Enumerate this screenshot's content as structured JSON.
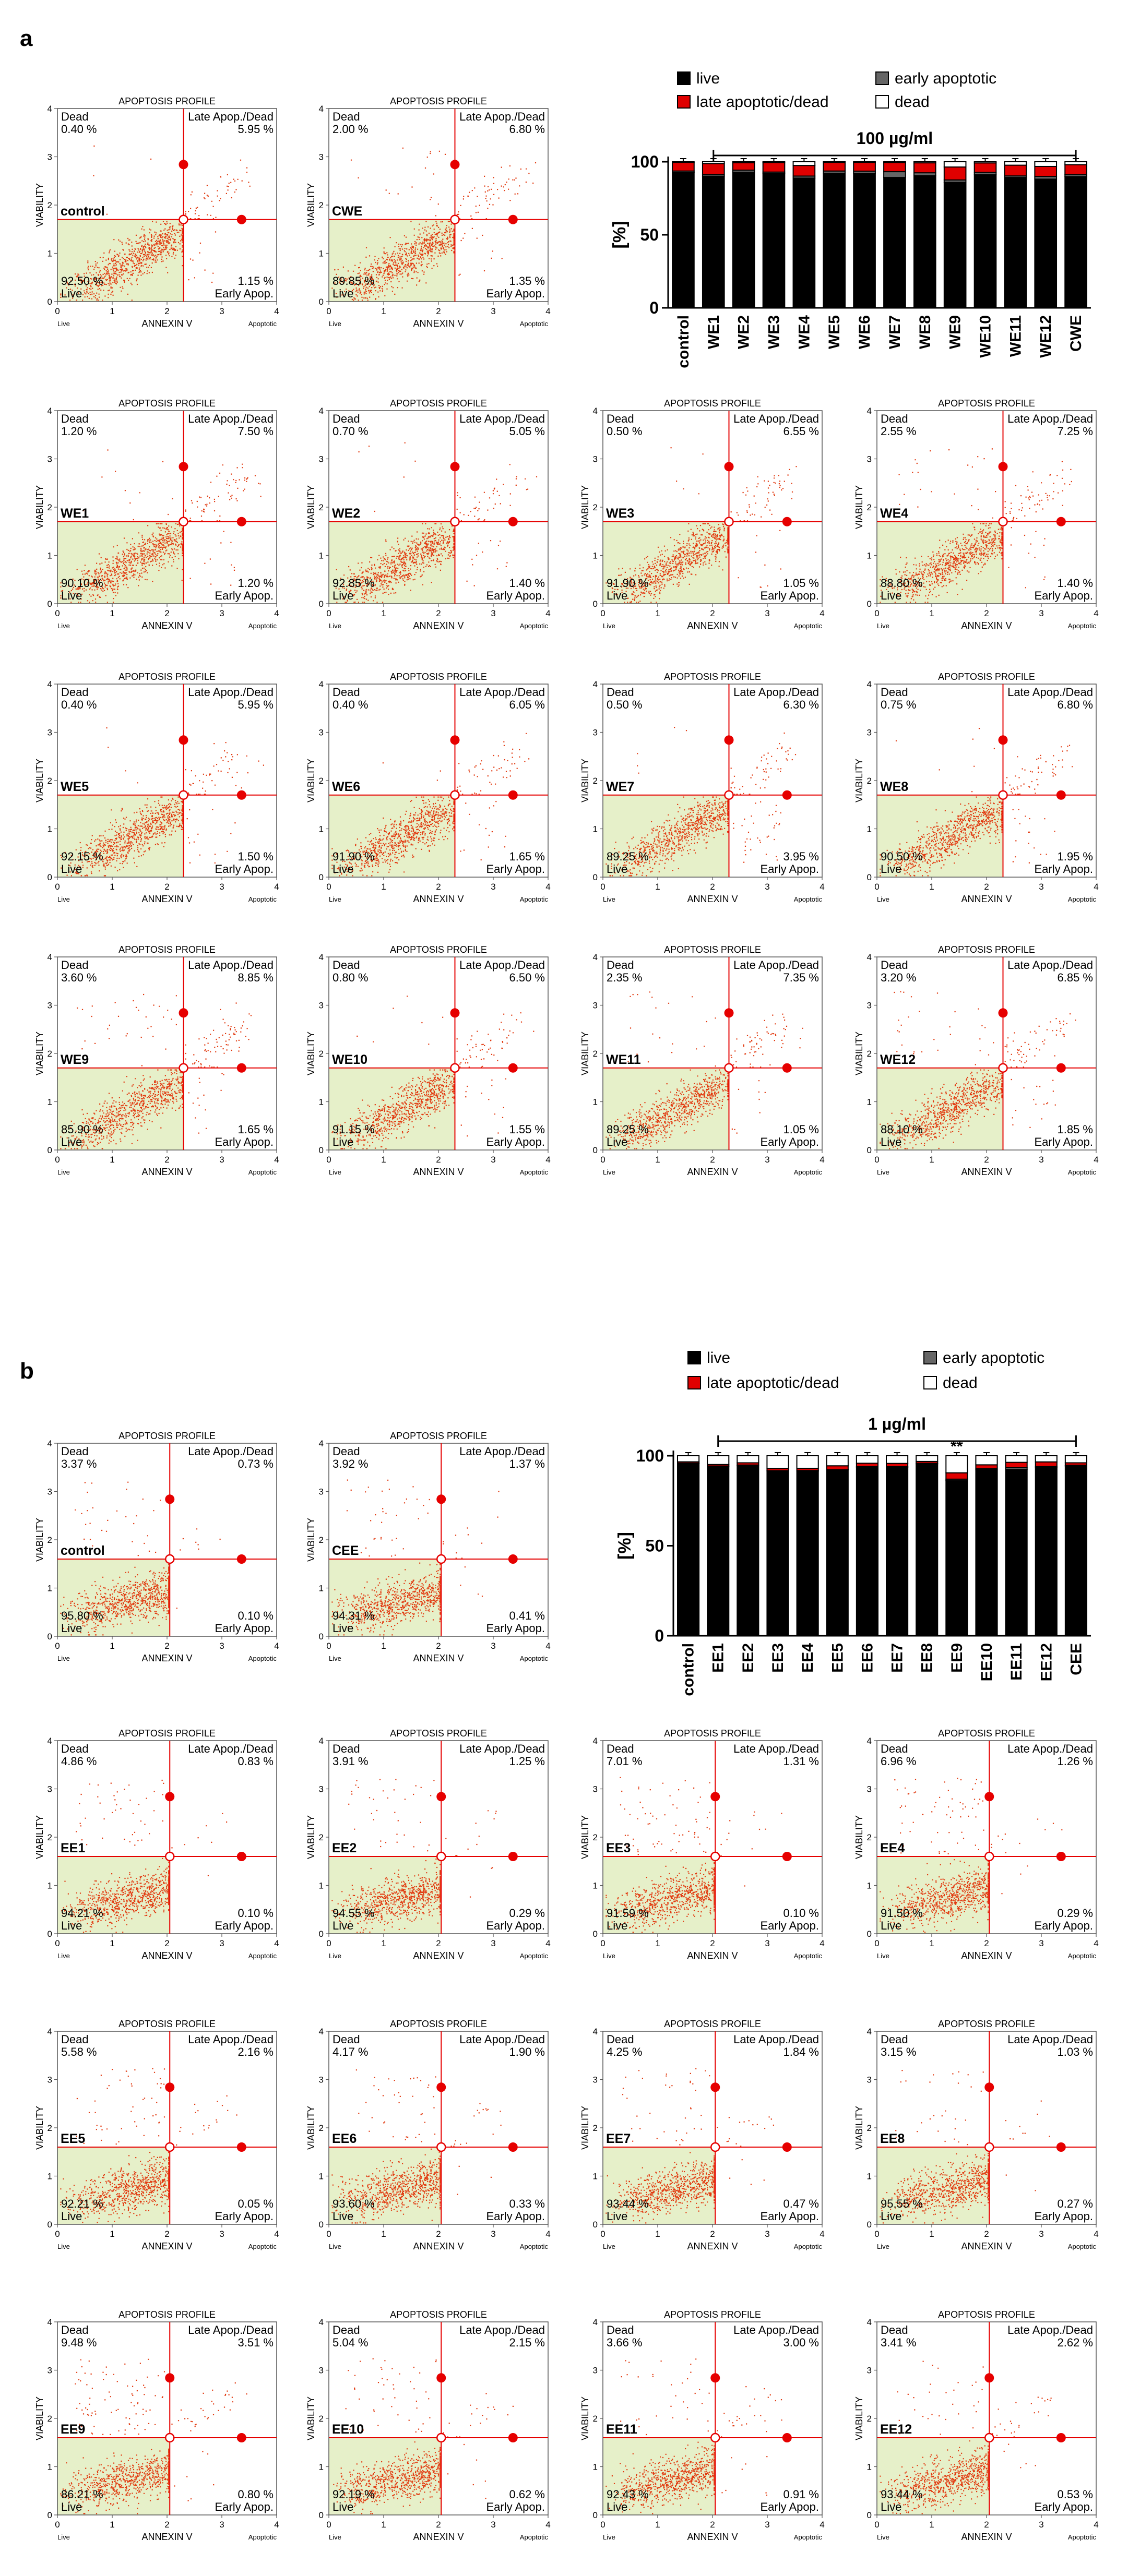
{
  "panels": [
    {
      "letter": "a",
      "flow": {
        "title": "APOPTOSIS PROFILE",
        "y_label": "VIABILITY",
        "x_label": "ANNEXIN V",
        "x_ticks": [
          "0",
          "1",
          "2",
          "3",
          "4"
        ],
        "y_ticks": [
          "0",
          "1",
          "2",
          "3",
          "4"
        ],
        "tick_low": "Live",
        "tick_high": "Apoptotic",
        "q_dead": "Dead",
        "q_late": "Late Apop./Dead",
        "q_live": "Live",
        "q_early": "Early Apop."
      },
      "bar": {
        "legend": [
          "live",
          "early apoptotic",
          "late apoptotic/dead",
          "dead"
        ],
        "legend_colors": [
          "#000000",
          "#666666",
          "#e00000",
          "#ffffff"
        ],
        "conc": "100 µg/ml",
        "ylabel": "[%]",
        "yticks": [
          "0",
          "50",
          "100"
        ]
      }
    },
    {
      "letter": "b",
      "flow": {
        "title": "APOPTOSIS PROFILE",
        "y_label": "VIABILITY",
        "x_label": "ANNEXIN V",
        "x_ticks": [
          "0",
          "1",
          "2",
          "3",
          "4"
        ],
        "y_ticks": [
          "0",
          "1",
          "2",
          "3",
          "4"
        ],
        "tick_low": "Live",
        "tick_high": "Apoptotic",
        "q_dead": "Dead",
        "q_late": "Late Apop./Dead",
        "q_live": "Live",
        "q_early": "Early Apop."
      },
      "bar": {
        "legend": [
          "live",
          "early apoptotic",
          "late apoptotic/dead",
          "dead"
        ],
        "legend_colors": [
          "#000000",
          "#666666",
          "#e00000",
          "#ffffff"
        ],
        "conc": "1 µg/ml",
        "ylabel": "[%]",
        "yticks": [
          "0",
          "50",
          "100"
        ],
        "annotation": "**"
      }
    }
  ],
  "chart_data": [
    {
      "type": "scatter",
      "title": "Panel a — Annexin V / viability dot plots, 100 µg/ml",
      "xlabel": "ANNEXIN V",
      "ylabel": "VIABILITY",
      "xlim": [
        0,
        4
      ],
      "ylim": [
        0,
        4
      ],
      "samples": [
        {
          "name": "control",
          "dead": "0.40 %",
          "late": "5.95 %",
          "live": "92.50 %",
          "early": "1.15 %"
        },
        {
          "name": "CWE",
          "dead": "2.00 %",
          "late": "6.80 %",
          "live": "89.85 %",
          "early": "1.35 %"
        },
        {
          "name": "WE1",
          "dead": "1.20 %",
          "late": "7.50 %",
          "live": "90.10 %",
          "early": "1.20 %"
        },
        {
          "name": "WE2",
          "dead": "0.70 %",
          "late": "5.05 %",
          "live": "92.85 %",
          "early": "1.40 %"
        },
        {
          "name": "WE3",
          "dead": "0.50 %",
          "late": "6.55 %",
          "live": "91.90 %",
          "early": "1.05 %"
        },
        {
          "name": "WE4",
          "dead": "2.55 %",
          "late": "7.25 %",
          "live": "88.80 %",
          "early": "1.40 %"
        },
        {
          "name": "WE5",
          "dead": "0.40 %",
          "late": "5.95 %",
          "live": "92.15 %",
          "early": "1.50 %"
        },
        {
          "name": "WE6",
          "dead": "0.40 %",
          "late": "6.05 %",
          "live": "91.90 %",
          "early": "1.65 %"
        },
        {
          "name": "WE7",
          "dead": "0.50 %",
          "late": "6.30 %",
          "live": "89.25 %",
          "early": "3.95 %"
        },
        {
          "name": "WE8",
          "dead": "0.75 %",
          "late": "6.80 %",
          "live": "90.50 %",
          "early": "1.95 %"
        },
        {
          "name": "WE9",
          "dead": "3.60 %",
          "late": "8.85 %",
          "live": "85.90 %",
          "early": "1.65 %"
        },
        {
          "name": "WE10",
          "dead": "0.80 %",
          "late": "6.50 %",
          "live": "91.15 %",
          "early": "1.55 %"
        },
        {
          "name": "WE11",
          "dead": "2.35 %",
          "late": "7.35 %",
          "live": "89.25 %",
          "early": "1.05 %"
        },
        {
          "name": "WE12",
          "dead": "3.20 %",
          "late": "6.85 %",
          "live": "88.10 %",
          "early": "1.85 %"
        }
      ]
    },
    {
      "type": "bar",
      "title": "Panel a — stacked viability bars, 100 µg/ml",
      "ylabel": "[%]",
      "ylim": [
        0,
        100
      ],
      "categories": [
        "control",
        "WE1",
        "WE2",
        "WE3",
        "WE4",
        "WE5",
        "WE6",
        "WE7",
        "WE8",
        "WE9",
        "WE10",
        "WE11",
        "WE12",
        "CWE"
      ],
      "series": [
        {
          "name": "live",
          "values": [
            92.5,
            90.1,
            92.85,
            91.9,
            88.8,
            92.15,
            91.9,
            89.25,
            90.5,
            85.9,
            91.15,
            89.25,
            88.1,
            89.85
          ]
        },
        {
          "name": "early apoptotic",
          "values": [
            1.15,
            1.2,
            1.4,
            1.05,
            1.4,
            1.5,
            1.65,
            3.95,
            1.95,
            1.65,
            1.55,
            1.05,
            1.85,
            1.35
          ]
        },
        {
          "name": "late apoptotic/dead",
          "values": [
            5.95,
            7.5,
            5.05,
            6.55,
            7.25,
            5.95,
            6.05,
            6.3,
            6.8,
            8.85,
            6.5,
            7.35,
            6.85,
            6.8
          ]
        },
        {
          "name": "dead",
          "values": [
            0.4,
            1.2,
            0.7,
            0.5,
            2.55,
            0.4,
            0.4,
            0.5,
            0.75,
            3.6,
            0.8,
            2.35,
            3.2,
            2.0
          ]
        }
      ]
    },
    {
      "type": "scatter",
      "title": "Panel b — Annexin V / viability dot plots, 1 µg/ml",
      "xlabel": "ANNEXIN V",
      "ylabel": "VIABILITY",
      "xlim": [
        0,
        4
      ],
      "ylim": [
        0,
        4
      ],
      "samples": [
        {
          "name": "control",
          "dead": "3.37 %",
          "late": "0.73 %",
          "live": "95.80 %",
          "early": "0.10 %"
        },
        {
          "name": "CEE",
          "dead": "3.92 %",
          "late": "1.37 %",
          "live": "94.31 %",
          "early": "0.41 %"
        },
        {
          "name": "EE1",
          "dead": "4.86 %",
          "late": "0.83 %",
          "live": "94.21 %",
          "early": "0.10 %"
        },
        {
          "name": "EE2",
          "dead": "3.91 %",
          "late": "1.25 %",
          "live": "94.55 %",
          "early": "0.29 %"
        },
        {
          "name": "EE3",
          "dead": "7.01 %",
          "late": "1.31 %",
          "live": "91.59 %",
          "early": "0.10 %"
        },
        {
          "name": "EE4",
          "dead": "6.96 %",
          "late": "1.26 %",
          "live": "91.50 %",
          "early": "0.29 %"
        },
        {
          "name": "EE5",
          "dead": "5.58 %",
          "late": "2.16 %",
          "live": "92.21 %",
          "early": "0.05 %"
        },
        {
          "name": "EE6",
          "dead": "4.17 %",
          "late": "1.90 %",
          "live": "93.60 %",
          "early": "0.33 %"
        },
        {
          "name": "EE7",
          "dead": "4.25 %",
          "late": "1.84 %",
          "live": "93.44 %",
          "early": "0.47 %"
        },
        {
          "name": "EE8",
          "dead": "3.15 %",
          "late": "1.03 %",
          "live": "95.55 %",
          "early": "0.27 %"
        },
        {
          "name": "EE9",
          "dead": "9.48 %",
          "late": "3.51 %",
          "live": "86.21 %",
          "early": "0.80 %"
        },
        {
          "name": "EE10",
          "dead": "5.04 %",
          "late": "2.15 %",
          "live": "92.19 %",
          "early": "0.62 %"
        },
        {
          "name": "EE11",
          "dead": "3.66 %",
          "late": "3.00 %",
          "live": "92.43 %",
          "early": "0.91 %"
        },
        {
          "name": "EE12",
          "dead": "3.41 %",
          "late": "2.62 %",
          "live": "93.44 %",
          "early": "0.53 %"
        }
      ]
    },
    {
      "type": "bar",
      "title": "Panel b — stacked viability bars, 1 µg/ml",
      "ylabel": "[%]",
      "ylim": [
        0,
        100
      ],
      "categories": [
        "control",
        "EE1",
        "EE2",
        "EE3",
        "EE4",
        "EE5",
        "EE6",
        "EE7",
        "EE8",
        "EE9",
        "EE10",
        "EE11",
        "EE12",
        "CEE"
      ],
      "series": [
        {
          "name": "live",
          "values": [
            95.8,
            94.21,
            94.55,
            91.59,
            91.5,
            92.21,
            93.6,
            93.44,
            95.55,
            86.21,
            92.19,
            92.43,
            93.44,
            94.31
          ]
        },
        {
          "name": "early apoptotic",
          "values": [
            0.1,
            0.1,
            0.29,
            0.1,
            0.29,
            0.05,
            0.33,
            0.47,
            0.27,
            0.8,
            0.62,
            0.91,
            0.53,
            0.41
          ]
        },
        {
          "name": "late apoptotic/dead",
          "values": [
            0.73,
            0.83,
            1.25,
            1.31,
            1.26,
            2.16,
            1.9,
            1.84,
            1.03,
            3.51,
            2.15,
            3.0,
            2.62,
            1.37
          ]
        },
        {
          "name": "dead",
          "values": [
            3.37,
            4.86,
            3.91,
            7.01,
            6.96,
            5.58,
            4.17,
            4.25,
            3.15,
            9.48,
            5.04,
            3.66,
            3.41,
            3.92
          ]
        }
      ]
    }
  ]
}
